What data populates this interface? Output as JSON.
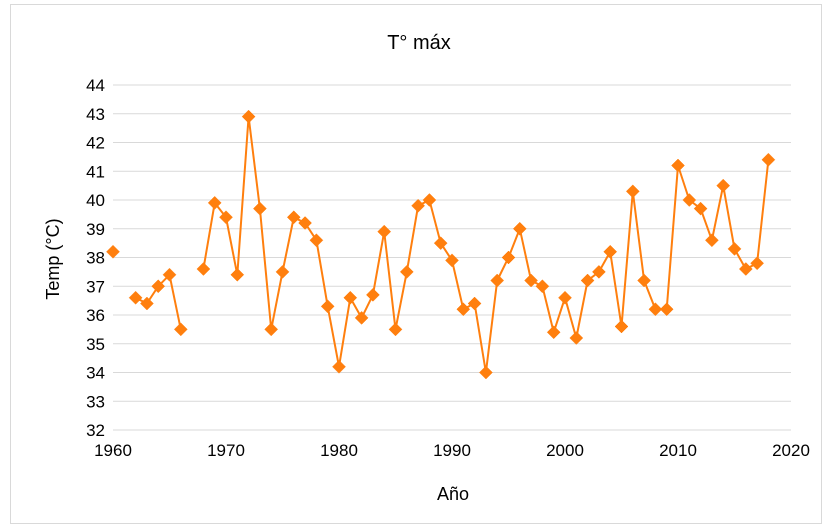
{
  "chart_data": {
    "type": "line",
    "title": "T° máx",
    "xlabel": "Año",
    "ylabel": "Temp (°C)",
    "xlim": [
      1960,
      2020
    ],
    "ylim": [
      32,
      44
    ],
    "x_ticks": [
      "1960",
      "1970",
      "1980",
      "1990",
      "2000",
      "2010",
      "2020"
    ],
    "y_ticks": [
      "32",
      "33",
      "34",
      "35",
      "36",
      "37",
      "38",
      "39",
      "40",
      "41",
      "42",
      "43",
      "44"
    ],
    "grid": "horizontal",
    "legend": "none",
    "marker": "diamond",
    "color": "#ff7f0e",
    "series": [
      {
        "segments": [
          [
            [
              1960,
              38.2
            ]
          ],
          [
            [
              1962,
              36.6
            ],
            [
              1963,
              36.4
            ],
            [
              1964,
              37.0
            ],
            [
              1965,
              37.4
            ],
            [
              1966,
              35.5
            ]
          ],
          [
            [
              1968,
              37.6
            ],
            [
              1969,
              39.9
            ],
            [
              1970,
              39.4
            ],
            [
              1971,
              37.4
            ],
            [
              1972,
              42.9
            ],
            [
              1973,
              39.7
            ],
            [
              1974,
              35.5
            ],
            [
              1975,
              37.5
            ],
            [
              1976,
              39.4
            ],
            [
              1977,
              39.2
            ],
            [
              1978,
              38.6
            ],
            [
              1979,
              36.3
            ],
            [
              1980,
              34.2
            ],
            [
              1981,
              36.6
            ],
            [
              1982,
              35.9
            ],
            [
              1983,
              36.7
            ],
            [
              1984,
              38.9
            ],
            [
              1985,
              35.5
            ],
            [
              1986,
              37.5
            ],
            [
              1987,
              39.8
            ],
            [
              1988,
              40.0
            ],
            [
              1989,
              38.5
            ],
            [
              1990,
              37.9
            ],
            [
              1991,
              36.2
            ],
            [
              1992,
              36.4
            ],
            [
              1993,
              34.0
            ],
            [
              1994,
              37.2
            ],
            [
              1995,
              38.0
            ],
            [
              1996,
              39.0
            ],
            [
              1997,
              37.2
            ],
            [
              1998,
              37.0
            ],
            [
              1999,
              35.4
            ],
            [
              2000,
              36.6
            ],
            [
              2001,
              35.2
            ],
            [
              2002,
              37.2
            ],
            [
              2003,
              37.5
            ],
            [
              2004,
              38.2
            ],
            [
              2005,
              35.6
            ],
            [
              2006,
              40.3
            ],
            [
              2007,
              37.2
            ],
            [
              2008,
              36.2
            ],
            [
              2009,
              36.2
            ],
            [
              2010,
              41.2
            ],
            [
              2011,
              40.0
            ],
            [
              2012,
              39.7
            ],
            [
              2013,
              38.6
            ],
            [
              2014,
              40.5
            ],
            [
              2015,
              38.3
            ],
            [
              2016,
              37.6
            ],
            [
              2017,
              37.8
            ],
            [
              2018,
              41.4
            ]
          ]
        ]
      }
    ]
  }
}
